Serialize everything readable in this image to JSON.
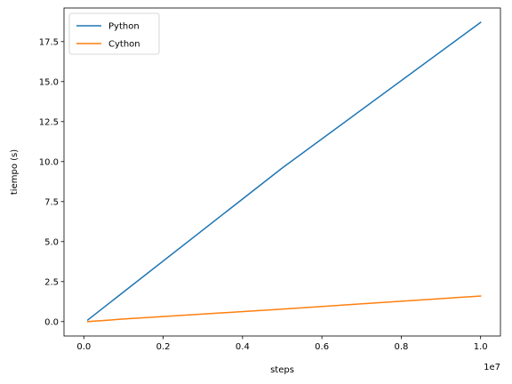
{
  "chart_data": {
    "type": "line",
    "xlabel": "steps",
    "ylabel": "tiempo (s)",
    "x_offset_label": "1e7",
    "xlim": [
      -0.05,
      1.05
    ],
    "ylim": [
      -0.9,
      19.6
    ],
    "xticks": [
      0.0,
      0.2,
      0.4,
      0.6,
      0.8,
      1.0
    ],
    "xtick_labels": [
      "0.0",
      "0.2",
      "0.4",
      "0.6",
      "0.8",
      "1.0"
    ],
    "yticks": [
      0.0,
      2.5,
      5.0,
      7.5,
      10.0,
      12.5,
      15.0,
      17.5
    ],
    "ytick_labels": [
      "0.0",
      "2.5",
      "5.0",
      "7.5",
      "10.0",
      "12.5",
      "15.0",
      "17.5"
    ],
    "grid": false,
    "legend_position": "top-left",
    "series": [
      {
        "name": "Python",
        "color": "#1f77b4",
        "x": [
          0.01,
          0.1,
          0.5,
          1.0
        ],
        "y": [
          0.1,
          1.85,
          9.6,
          18.7
        ]
      },
      {
        "name": "Cython",
        "color": "#ff7f0e",
        "x": [
          0.01,
          0.1,
          0.5,
          1.0
        ],
        "y": [
          0.0,
          0.16,
          0.78,
          1.6
        ]
      }
    ]
  }
}
